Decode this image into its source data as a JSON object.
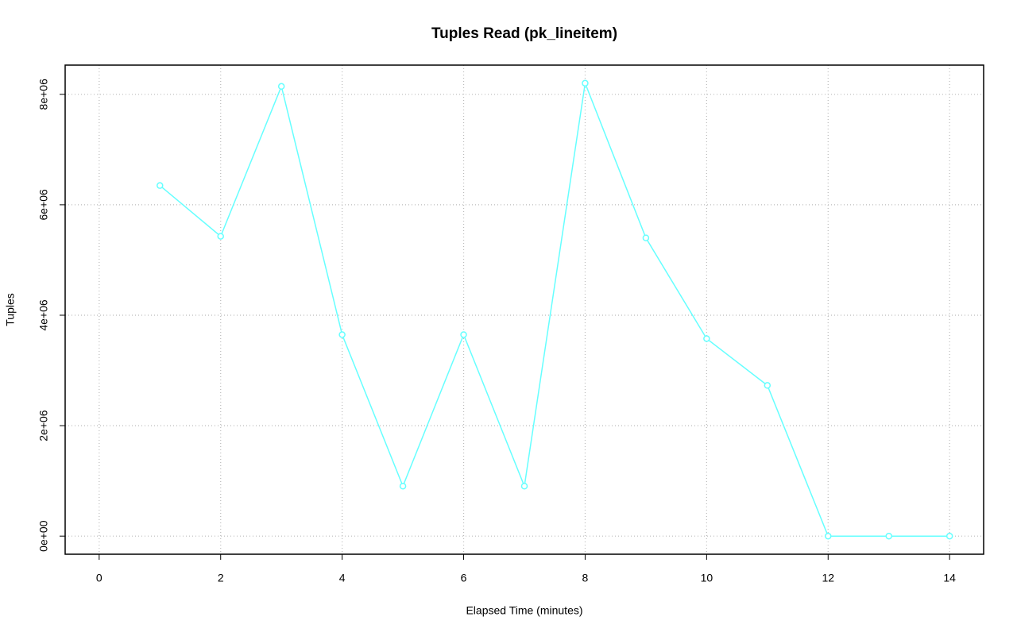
{
  "chart_data": {
    "type": "line",
    "title": "Tuples Read (pk_lineitem)",
    "x_label": "Elapsed Time (minutes)",
    "y_label": "Tuples",
    "x": [
      1,
      2,
      3,
      4,
      5,
      6,
      7,
      8,
      9,
      10,
      11,
      12,
      13,
      14
    ],
    "series": [
      {
        "name": "pk_lineitem",
        "color": "#66ffff",
        "values": [
          6348000,
          5429000,
          8144000,
          3648000,
          905000,
          3648000,
          905000,
          8201000,
          5400000,
          3576000,
          2729000,
          0,
          0,
          0
        ]
      }
    ],
    "xlim": [
      -0.56,
      14.56
    ],
    "xticks": [
      0,
      2,
      4,
      6,
      8,
      10,
      12,
      14
    ],
    "ylim": [
      -328000,
      8529000
    ],
    "yticks": [
      {
        "value": 0,
        "label": "0e+00"
      },
      {
        "value": 2000000,
        "label": "2e+06"
      },
      {
        "value": 4000000,
        "label": "4e+06"
      },
      {
        "value": 6000000,
        "label": "6e+06"
      },
      {
        "value": 8000000,
        "label": "8e+06"
      }
    ],
    "grid": true
  }
}
